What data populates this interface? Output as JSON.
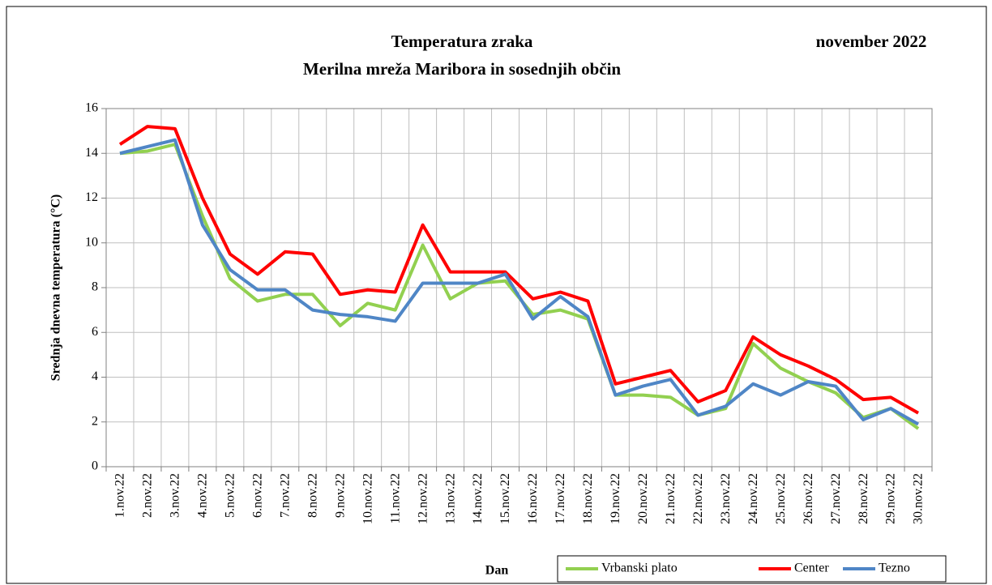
{
  "chart_data": {
    "type": "line",
    "title": "Temperatura zraka",
    "subtitle": "Merilna mreža Maribora in sosednjih občin",
    "period": "november 2022",
    "x_label": "Dan",
    "y_label": "Srednja dnevna temperatura (°C)",
    "categories": [
      "1.nov.22",
      "2.nov.22",
      "3.nov.22",
      "4.nov.22",
      "5.nov.22",
      "6.nov.22",
      "7.nov.22",
      "8.nov.22",
      "9.nov.22",
      "10.nov.22",
      "11.nov.22",
      "12.nov.22",
      "13.nov.22",
      "14.nov.22",
      "15.nov.22",
      "16.nov.22",
      "17.nov.22",
      "18.nov.22",
      "19.nov.22",
      "20.nov.22",
      "21.nov.22",
      "22.nov.22",
      "23.nov.22",
      "24.nov.22",
      "25.nov.22",
      "26.nov.22",
      "27.nov.22",
      "28.nov.22",
      "29.nov.22",
      "30.nov.22"
    ],
    "series": [
      {
        "name": "Vrbanski plato",
        "color": "#92d050",
        "values": [
          14.0,
          14.1,
          14.4,
          11.2,
          8.4,
          7.4,
          7.7,
          7.7,
          6.3,
          7.3,
          7.0,
          9.9,
          7.5,
          8.2,
          8.3,
          6.8,
          7.0,
          6.6,
          3.2,
          3.2,
          3.1,
          2.3,
          2.6,
          5.5,
          4.4,
          3.8,
          3.3,
          2.2,
          2.6,
          1.7
        ]
      },
      {
        "name": "Center",
        "color": "#ff0000",
        "values": [
          14.4,
          15.2,
          15.1,
          12.0,
          9.5,
          8.6,
          9.6,
          9.5,
          7.7,
          7.9,
          7.8,
          10.8,
          8.7,
          8.7,
          8.7,
          7.5,
          7.8,
          7.4,
          3.7,
          4.0,
          4.3,
          2.9,
          3.4,
          5.8,
          5.0,
          4.5,
          3.9,
          3.0,
          3.1,
          2.4
        ]
      },
      {
        "name": "Tezno",
        "color": "#4f86c6",
        "values": [
          14.0,
          14.3,
          14.6,
          10.8,
          8.8,
          7.9,
          7.9,
          7.0,
          6.8,
          6.7,
          6.5,
          8.2,
          8.2,
          8.2,
          8.6,
          6.6,
          7.6,
          6.7,
          3.2,
          3.6,
          3.9,
          2.3,
          2.7,
          3.7,
          3.2,
          3.8,
          3.6,
          2.1,
          2.6,
          1.9
        ]
      }
    ],
    "ylim": [
      0,
      16
    ],
    "yticks": [
      0,
      2,
      4,
      6,
      8,
      10,
      12,
      14,
      16
    ],
    "grid": true,
    "legend": "bottom-right"
  }
}
